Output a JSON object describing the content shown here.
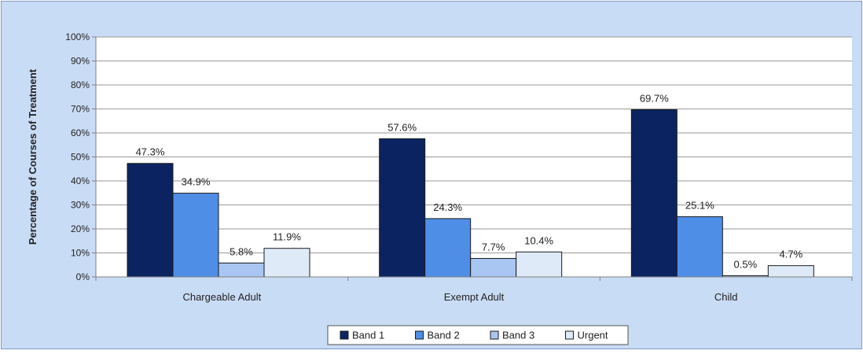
{
  "chart_data": {
    "type": "bar",
    "title": "",
    "xlabel": "",
    "ylabel": "Percentage of Courses of Treatment",
    "categories": [
      "Chargeable Adult",
      "Exempt Adult",
      "Child"
    ],
    "series": [
      {
        "name": "Band 1",
        "values": [
          47.3,
          57.6,
          69.7
        ],
        "labels": [
          "47.3%",
          "57.6%",
          "69.7%"
        ],
        "color": "#0b2461"
      },
      {
        "name": "Band 2",
        "values": [
          34.9,
          24.3,
          25.1
        ],
        "labels": [
          "34.9%",
          "24.3%",
          "25.1%"
        ],
        "color": "#4f8ee6"
      },
      {
        "name": "Band 3",
        "values": [
          5.8,
          7.7,
          0.5
        ],
        "labels": [
          "5.8%",
          "7.7%",
          "0.5%"
        ],
        "color": "#a9c6f2"
      },
      {
        "name": "Urgent",
        "values": [
          11.9,
          10.4,
          4.7
        ],
        "labels": [
          "11.9%",
          "10.4%",
          "4.7%"
        ],
        "color": "#dfeaf9"
      }
    ],
    "ylim": [
      0,
      100
    ],
    "yticks": [
      0,
      10,
      20,
      30,
      40,
      50,
      60,
      70,
      80,
      90,
      100
    ],
    "ytick_labels": [
      "0%",
      "10%",
      "20%",
      "30%",
      "40%",
      "50%",
      "60%",
      "70%",
      "80%",
      "90%",
      "100%"
    ],
    "grid": true,
    "legend_position": "bottom-center",
    "colors": {
      "background": "#c9dcf5",
      "frame": "#7f9cc7",
      "plot_area": "#ffffff",
      "grid": "#9a9a9a",
      "axis": "#808080",
      "text": "#222222",
      "bar_outline": "#1a1a1a"
    }
  }
}
